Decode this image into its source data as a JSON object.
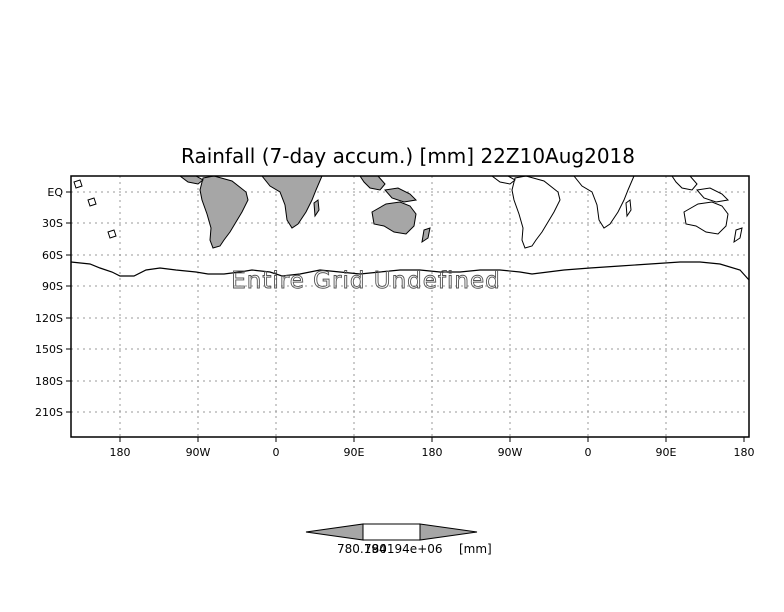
{
  "title": "Rainfall (7-day accum.) [mm] 22Z10Aug2018",
  "watermark": "Entire Grid Undefined",
  "y_axis": {
    "labels": [
      "EQ",
      "30S",
      "60S",
      "90S",
      "120S",
      "150S",
      "180S",
      "210S"
    ]
  },
  "x_axis": {
    "labels": [
      "180",
      "90W",
      "0",
      "90E",
      "180",
      "90W",
      "0",
      "90E",
      "180"
    ]
  },
  "colorbar": {
    "left_label": "780.194",
    "mid_label": "780194e+06",
    "unit_label": "[mm]"
  },
  "colors": {
    "land_fill": "#a6a6a6",
    "grid": "#9a9a9a",
    "frame": "#000000"
  }
}
